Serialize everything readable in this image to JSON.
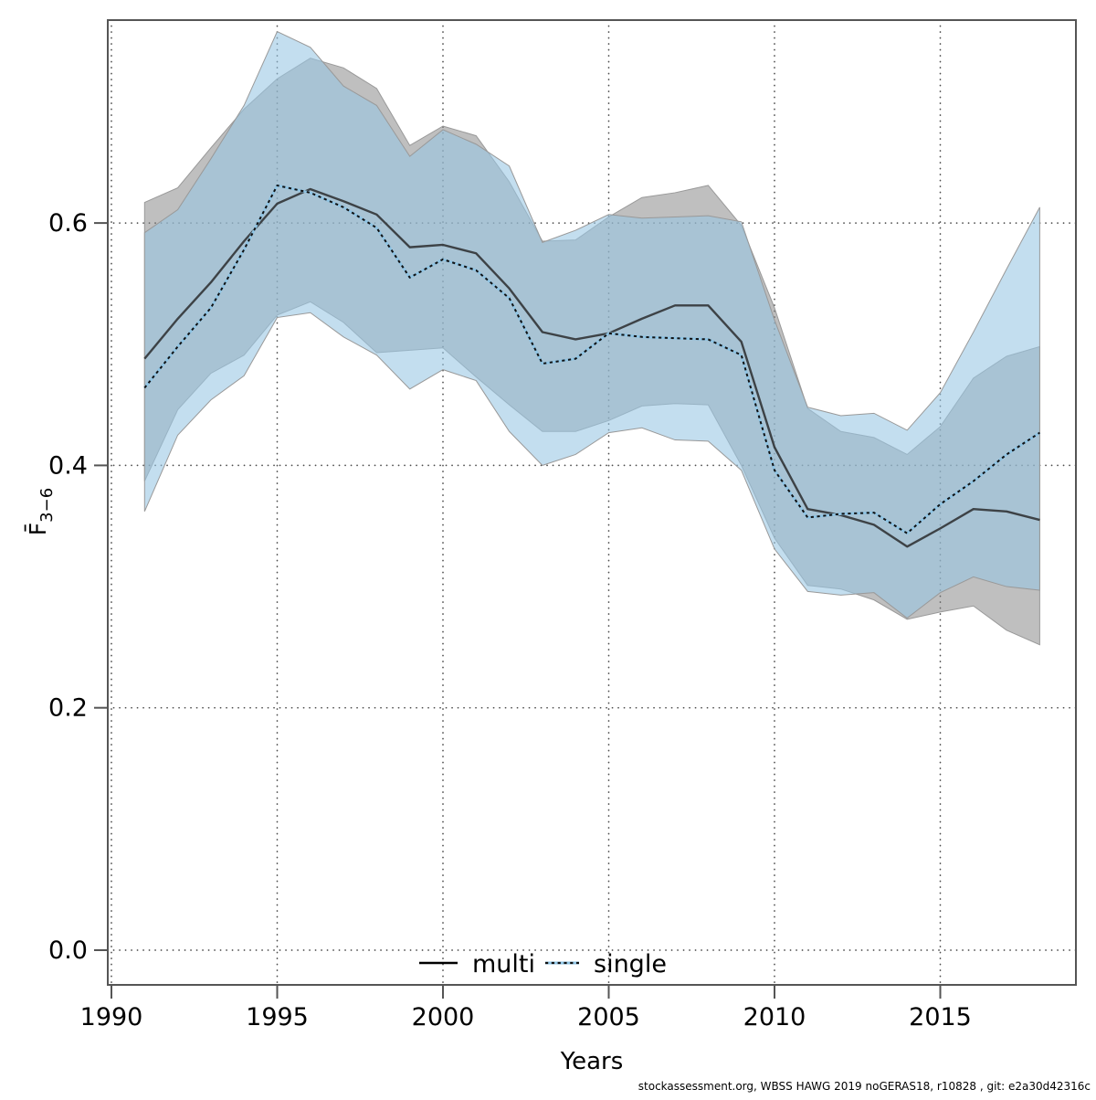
{
  "footer": {
    "text": "stockassessment.org, WBSS HAWG 2019 noGERAS18, r10828 , git: e2a30d42316c"
  },
  "chart_data": {
    "type": "line",
    "title": "",
    "xlabel": "Years",
    "ylabel": "F̄3−6",
    "ylabel_main": "F̄",
    "ylabel_sub": "3−6",
    "x_ticks": [
      1990,
      1995,
      2000,
      2005,
      2010,
      2015
    ],
    "y_tick_labels": [
      "0.0",
      "0.2",
      "0.4",
      "0.6"
    ],
    "y_tick_values": [
      0.0,
      0.2,
      0.4,
      0.6
    ],
    "xlim": [
      1989.9,
      2019.1
    ],
    "ylim": [
      -0.03,
      0.77
    ],
    "grid": "dotted gridlines at all axis ticks, both directions",
    "legend": {
      "position": "inside-bottom-center",
      "entries": [
        {
          "label": "multi",
          "style": "solid black line"
        },
        {
          "label": "single",
          "style": "black dotted line over light blue"
        }
      ]
    },
    "years": [
      1991,
      1992,
      1993,
      1994,
      1995,
      1996,
      1997,
      1998,
      1999,
      2000,
      2001,
      2002,
      2003,
      2004,
      2005,
      2006,
      2007,
      2008,
      2009,
      2010,
      2011,
      2012,
      2013,
      2014,
      2015,
      2016,
      2017,
      2018
    ],
    "series": [
      {
        "name": "multi",
        "type": "line_with_confidence_band",
        "line_style": "solid",
        "values": [
          0.488,
          0.521,
          0.551,
          0.585,
          0.616,
          0.628,
          0.618,
          0.607,
          0.58,
          0.582,
          0.575,
          0.546,
          0.51,
          0.504,
          0.509,
          0.521,
          0.532,
          0.532,
          0.502,
          0.415,
          0.364,
          0.359,
          0.351,
          0.333,
          0.348,
          0.364,
          0.362,
          0.355
        ],
        "lower": [
          0.387,
          0.446,
          0.476,
          0.491,
          0.524,
          0.535,
          0.518,
          0.493,
          0.495,
          0.497,
          0.473,
          0.45,
          0.428,
          0.428,
          0.437,
          0.449,
          0.451,
          0.45,
          0.4,
          0.34,
          0.301,
          0.298,
          0.289,
          0.273,
          0.279,
          0.284,
          0.264,
          0.252
        ],
        "upper": [
          0.617,
          0.629,
          0.662,
          0.694,
          0.719,
          0.736,
          0.728,
          0.711,
          0.664,
          0.68,
          0.672,
          0.634,
          0.585,
          0.586,
          0.605,
          0.621,
          0.625,
          0.631,
          0.598,
          0.53,
          0.447,
          0.428,
          0.423,
          0.409,
          0.432,
          0.472,
          0.49,
          0.498
        ]
      },
      {
        "name": "single",
        "type": "line_with_confidence_band",
        "line_style": "dotted",
        "values": [
          0.464,
          0.498,
          0.53,
          0.578,
          0.631,
          0.625,
          0.613,
          0.596,
          0.555,
          0.57,
          0.561,
          0.538,
          0.484,
          0.488,
          0.509,
          0.506,
          0.505,
          0.504,
          0.491,
          0.396,
          0.357,
          0.36,
          0.361,
          0.344,
          0.368,
          0.387,
          0.409,
          0.427
        ],
        "lower": [
          0.362,
          0.425,
          0.454,
          0.474,
          0.522,
          0.526,
          0.506,
          0.491,
          0.463,
          0.479,
          0.47,
          0.428,
          0.4,
          0.409,
          0.427,
          0.431,
          0.421,
          0.42,
          0.396,
          0.331,
          0.296,
          0.293,
          0.295,
          0.274,
          0.295,
          0.308,
          0.3,
          0.297
        ],
        "upper": [
          0.592,
          0.611,
          0.653,
          0.697,
          0.758,
          0.745,
          0.713,
          0.697,
          0.655,
          0.677,
          0.665,
          0.647,
          0.584,
          0.594,
          0.607,
          0.604,
          0.605,
          0.606,
          0.601,
          0.52,
          0.448,
          0.441,
          0.443,
          0.429,
          0.46,
          0.51,
          0.562,
          0.613
        ]
      }
    ],
    "colors": {
      "multi_band": "rgba(128,128,128,0.50)",
      "single_band": "rgba(152,199,227,0.58)",
      "band_edge": "#999999",
      "multi_line": "#222222",
      "single_line_base": "#8fc4e4",
      "single_line_dots": "#111111",
      "grid": "#4d4d4d",
      "axis": "#555555"
    }
  }
}
